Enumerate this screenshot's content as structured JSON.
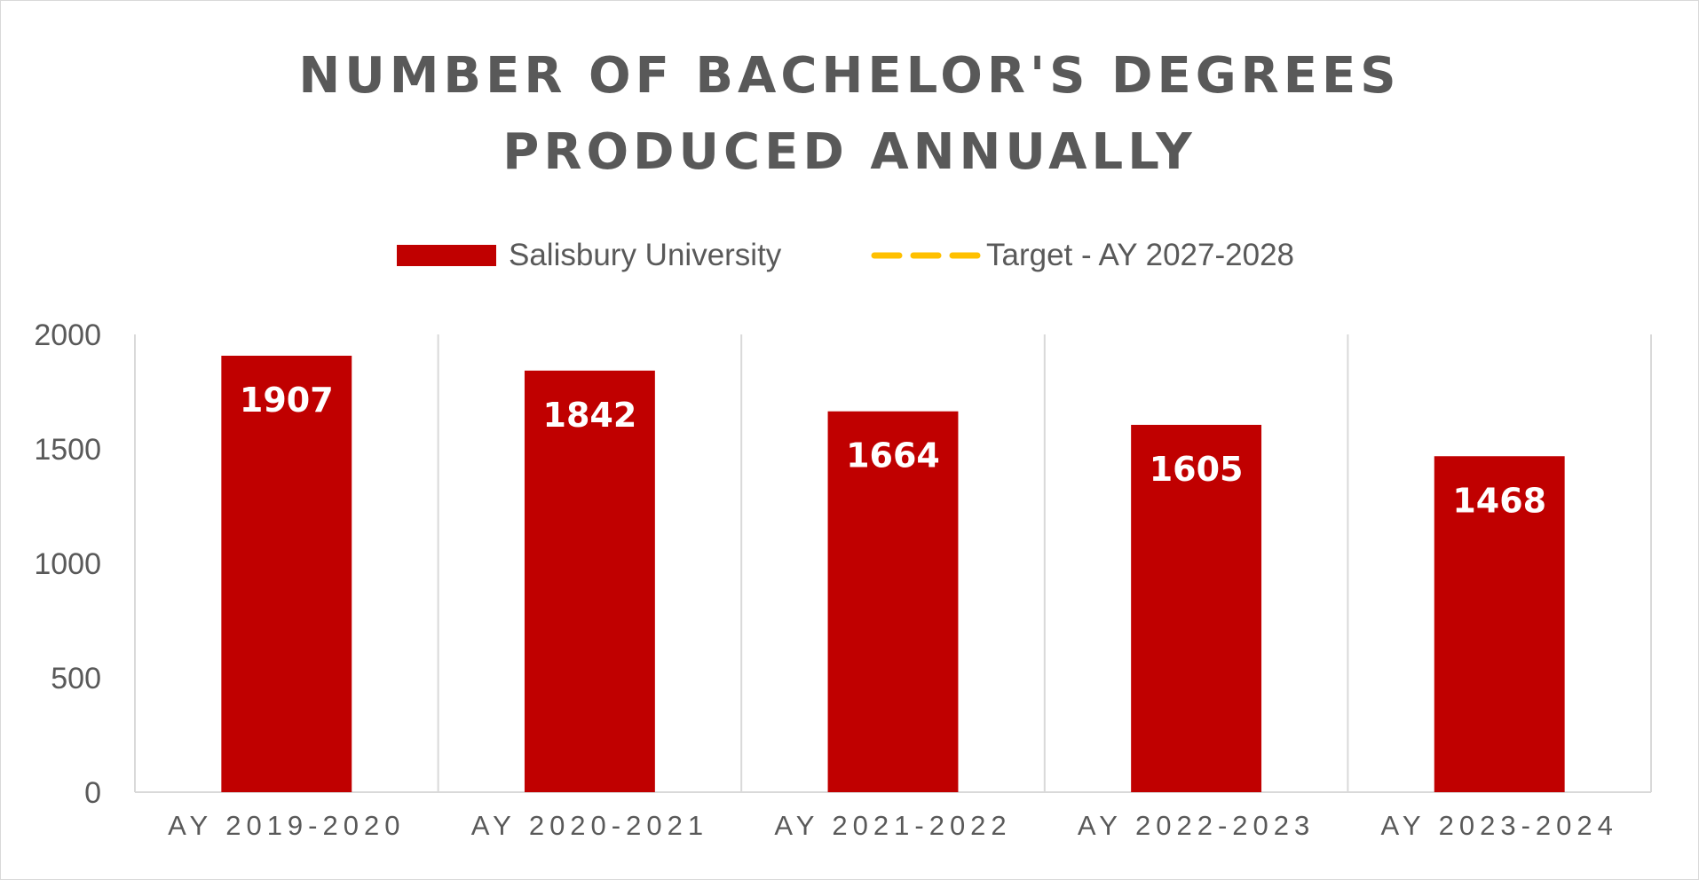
{
  "chart_data": {
    "type": "bar",
    "title": "NUMBER OF BACHELOR'S DEGREES PRODUCED ANNUALLY",
    "title_lines": [
      "NUMBER OF BACHELOR'S DEGREES",
      "PRODUCED ANNUALLY"
    ],
    "categories": [
      "AY 2019-2020",
      "AY 2020-2021",
      "AY 2021-2022",
      "AY 2022-2023",
      "AY 2023-2024"
    ],
    "series": [
      {
        "name": "Salisbury University",
        "values": [
          1907,
          1842,
          1664,
          1605,
          1468
        ],
        "color": "#c00000"
      }
    ],
    "reference_series": {
      "name": "Target - AY 2027-2028",
      "style": "dashed line",
      "color": "#ffc000"
    },
    "yticks": [
      "0",
      "500",
      "1000",
      "1500",
      "2000"
    ],
    "ylim": [
      0,
      2000
    ],
    "grid": "vertical category dividers",
    "legend_position": "top",
    "data_labels": "inside end, white bold"
  }
}
